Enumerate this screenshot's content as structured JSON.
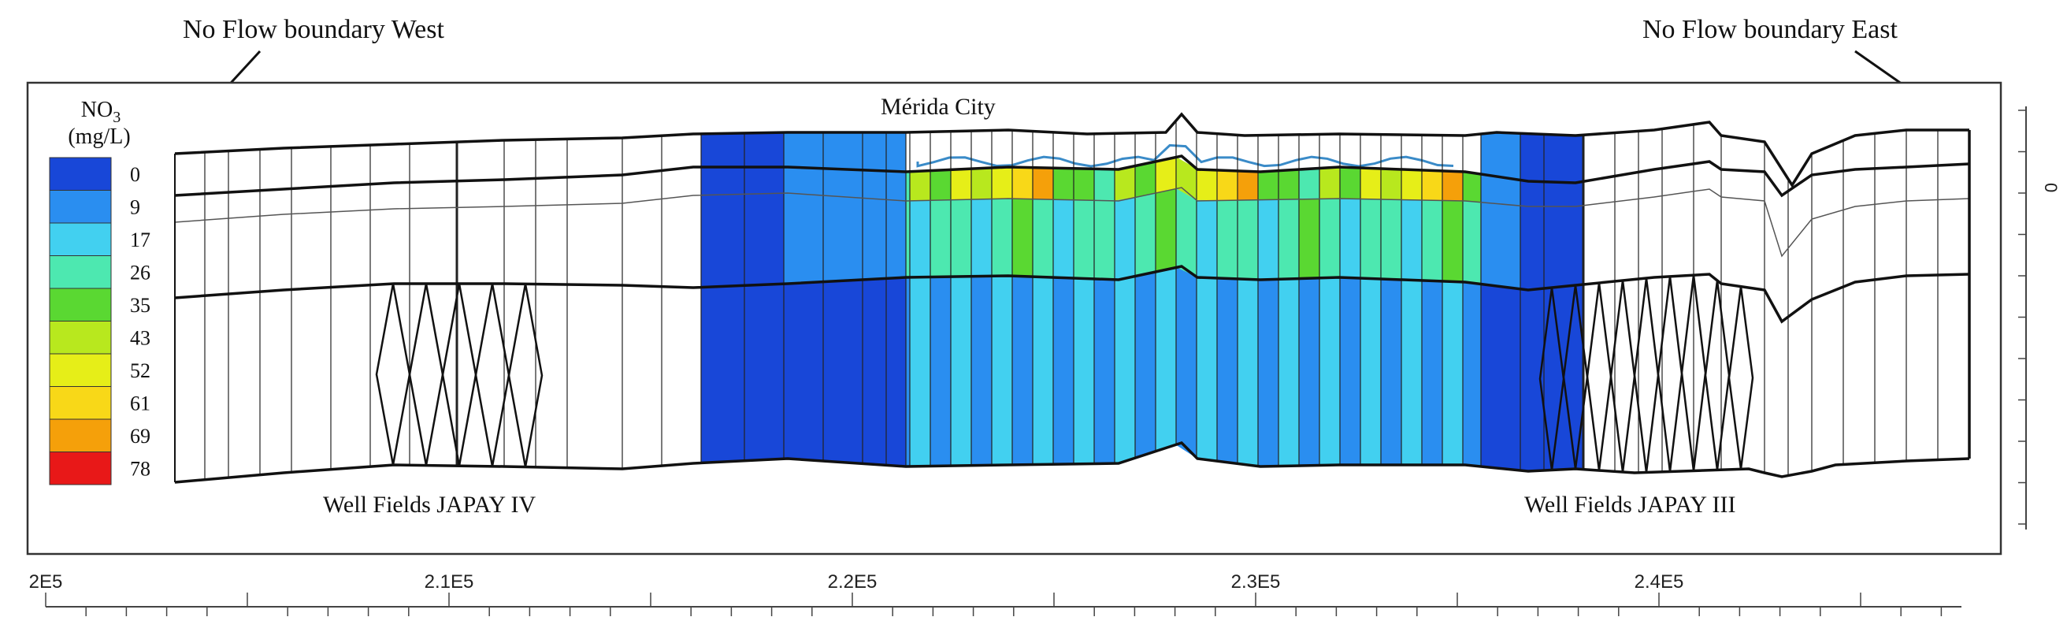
{
  "annotations": {
    "west_boundary": "No Flow boundary West",
    "east_boundary": "No Flow boundary East",
    "city": "Mérida City",
    "well_field_west": "Well Fields JAPAY IV",
    "well_field_east": "Well Fields JAPAY III"
  },
  "legend": {
    "title_base": "NO",
    "title_sub": "3",
    "units": "(mg/L)",
    "items": [
      {
        "label": "0",
        "color": "#1847d8"
      },
      {
        "label": "9",
        "color": "#2a8ef0"
      },
      {
        "label": "17",
        "color": "#42d0f0"
      },
      {
        "label": "26",
        "color": "#4de8b0"
      },
      {
        "label": "35",
        "color": "#5ad832"
      },
      {
        "label": "43",
        "color": "#b8e81e"
      },
      {
        "label": "52",
        "color": "#e6ee18"
      },
      {
        "label": "61",
        "color": "#f8d818"
      },
      {
        "label": "69",
        "color": "#f5a00a"
      },
      {
        "label": "78",
        "color": "#e81818"
      }
    ]
  },
  "x_axis": {
    "ticks": [
      {
        "label": "2E5",
        "value": 200000
      },
      {
        "label": "2.1E5",
        "value": 210000
      },
      {
        "label": "2.2E5",
        "value": 220000
      },
      {
        "label": "2.3E5",
        "value": 230000
      },
      {
        "label": "2.4E5",
        "value": 240000
      }
    ]
  },
  "y_axis": {
    "ticks": [
      {
        "label": "0"
      }
    ]
  }
}
